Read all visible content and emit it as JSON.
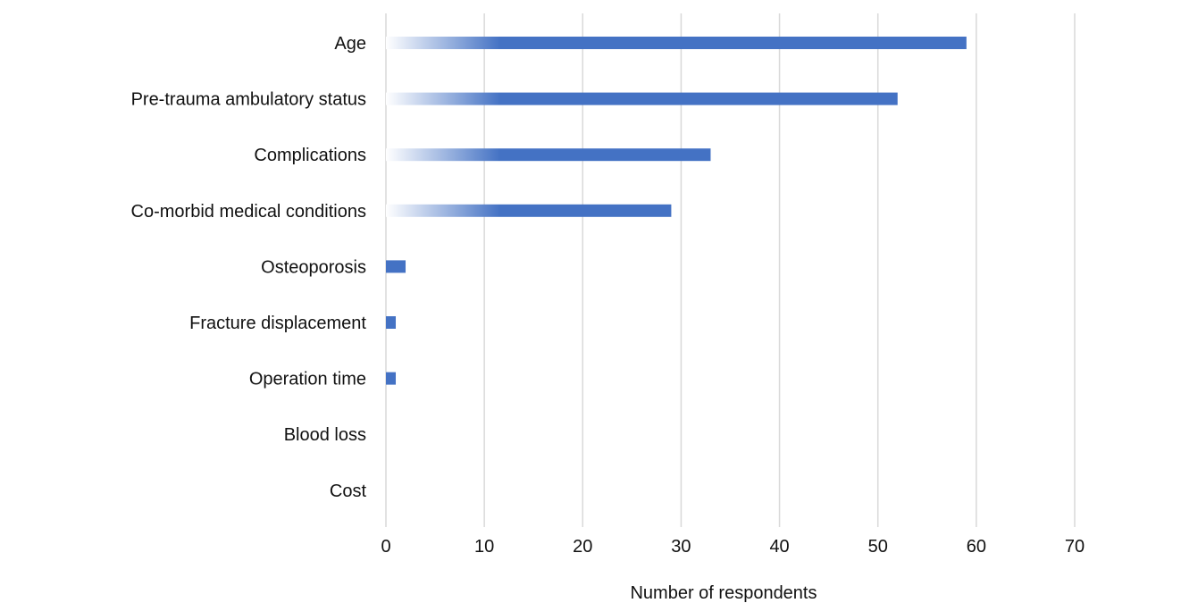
{
  "chart_data": {
    "type": "bar",
    "orientation": "horizontal",
    "title": "",
    "xlabel": "Number of respondents",
    "ylabel": "",
    "categories": [
      "Age",
      "Pre-trauma ambulatory status",
      "Complications",
      "Co-morbid medical conditions",
      "Osteoporosis",
      "Fracture displacement",
      "Operation time",
      "Blood loss",
      "Cost"
    ],
    "values": [
      59,
      52,
      33,
      29,
      2,
      1,
      1,
      0,
      0
    ],
    "xlim": [
      0,
      70
    ],
    "xticks": [
      "0",
      "10",
      "20",
      "30",
      "40",
      "50",
      "60",
      "70"
    ],
    "grid": "vertical",
    "legend": "none",
    "colors": {
      "bar": "#4472c4",
      "bar_fade": "#ffffff",
      "grid": "#d9d9d9"
    }
  }
}
